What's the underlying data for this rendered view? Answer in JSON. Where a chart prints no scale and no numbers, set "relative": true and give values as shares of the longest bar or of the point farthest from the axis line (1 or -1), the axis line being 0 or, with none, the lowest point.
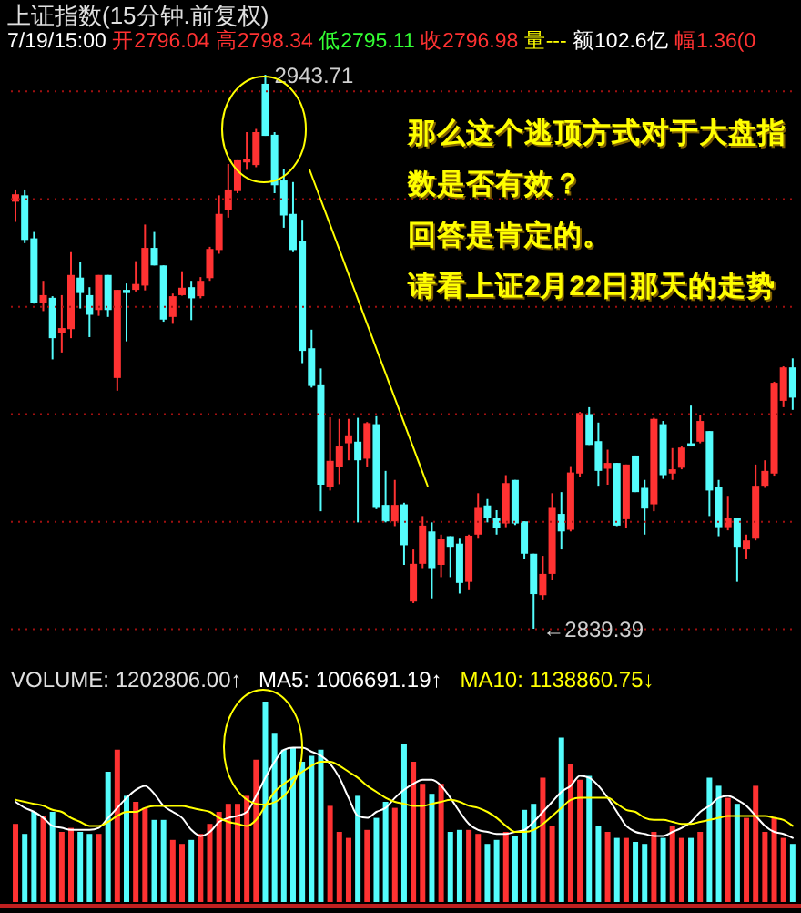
{
  "chart_data": [
    {
      "type": "candlestick",
      "title": "上证指数(15分钟.前复权)",
      "subtitle": "7/19/15:00 开2796.04 高2798.34 低2795.11 收2796.98 量--- 额102.6亿 幅1.36(0",
      "categories": [
        null,
        null,
        null,
        null,
        null,
        null,
        null,
        null,
        null,
        null,
        null,
        null,
        null,
        null,
        null,
        null,
        null,
        null,
        null,
        null,
        null,
        null,
        null,
        null,
        null,
        null,
        null,
        null,
        null,
        null,
        null,
        null,
        null,
        null,
        null,
        null,
        null,
        null,
        null,
        null,
        null,
        null,
        null,
        null,
        null,
        null,
        null,
        null,
        null,
        null,
        null,
        null,
        null,
        null,
        null,
        null,
        null,
        null,
        null,
        null,
        null,
        null,
        null,
        null,
        null,
        null,
        null,
        null,
        null,
        null,
        null,
        null,
        null,
        null,
        null,
        null,
        null,
        null,
        null,
        null,
        null,
        null,
        null,
        null,
        null
      ],
      "ohlc": [
        [
          2919.8,
          2922.1,
          2916.0,
          2921.2
        ],
        [
          2921.0,
          2922.1,
          2912.0,
          2912.6
        ],
        [
          2912.9,
          2914.1,
          2900.6,
          2900.8
        ],
        [
          2900.8,
          2904.9,
          2899.2,
          2902.2
        ],
        [
          2901.7,
          2902.0,
          2890.1,
          2894.1
        ],
        [
          2895.1,
          2902.2,
          2891.4,
          2896.0
        ],
        [
          2895.8,
          2910.3,
          2894.1,
          2906.0
        ],
        [
          2905.5,
          2908.4,
          2899.7,
          2902.6
        ],
        [
          2902.2,
          2903.7,
          2894.3,
          2898.5
        ],
        [
          2899.4,
          2906.0,
          2898.3,
          2906.0
        ],
        [
          2906.0,
          2906.0,
          2898.1,
          2899.4
        ],
        [
          2886.6,
          2903.2,
          2884.2,
          2903.2
        ],
        [
          2903.2,
          2904.4,
          2893.5,
          2902.6
        ],
        [
          2903.2,
          2908.6,
          2902.9,
          2904.3
        ],
        [
          2904.0,
          2915.5,
          2903.1,
          2911.1
        ],
        [
          2911.1,
          2914.1,
          2907.8,
          2907.8
        ],
        [
          2907.8,
          2907.8,
          2897.2,
          2897.6
        ],
        [
          2898.1,
          2902.5,
          2896.8,
          2902.0
        ],
        [
          2902.2,
          2906.7,
          2902.1,
          2903.6
        ],
        [
          2903.7,
          2904.9,
          2897.5,
          2901.6
        ],
        [
          2902.0,
          2905.6,
          2901.6,
          2904.9
        ],
        [
          2905.4,
          2911.3,
          2904.9,
          2910.9
        ],
        [
          2910.7,
          2921.0,
          2910.0,
          2917.5
        ],
        [
          2918.3,
          2926.9,
          2916.8,
          2922.1
        ],
        [
          2921.8,
          2927.6,
          2921.4,
          2927.6
        ],
        [
          2927.2,
          2932.9,
          2925.8,
          2927.8
        ],
        [
          2926.7,
          2933.5,
          2926.3,
          2932.9
        ],
        [
          2942.0,
          2943.71,
          2932.2,
          2932.2
        ],
        [
          2932.4,
          2932.9,
          2921.4,
          2922.9
        ],
        [
          2923.8,
          2926.0,
          2914.9,
          2917.2
        ],
        [
          2917.5,
          2923.5,
          2910.3,
          2910.7
        ],
        [
          2912.4,
          2916.4,
          2889.4,
          2891.7
        ],
        [
          2892.2,
          2895.7,
          2884.8,
          2885.1
        ],
        [
          2885.4,
          2888.4,
          2861.5,
          2866.5
        ],
        [
          2866.0,
          2879.2,
          2865.4,
          2871.0
        ],
        [
          2869.9,
          2878.9,
          2866.6,
          2873.7
        ],
        [
          2874.3,
          2878.9,
          2871.1,
          2875.8
        ],
        [
          2874.6,
          2879.1,
          2859.4,
          2871.1
        ],
        [
          2871.4,
          2878.3,
          2869.9,
          2878.1
        ],
        [
          2877.9,
          2879.4,
          2861.9,
          2862.3
        ],
        [
          2862.7,
          2869.1,
          2859.4,
          2859.6
        ],
        [
          2859.6,
          2867.4,
          2858.7,
          2862.7
        ],
        [
          2862.8,
          2863.1,
          2851.4,
          2855.1
        ],
        [
          2844.5,
          2854.3,
          2844.2,
          2851.6
        ],
        [
          2851.6,
          2860.6,
          2850.8,
          2858.8
        ],
        [
          2857.7,
          2859.4,
          2845.1,
          2850.8
        ],
        [
          2851.4,
          2857.1,
          2849.1,
          2856.2
        ],
        [
          2856.8,
          2856.8,
          2849.1,
          2854.8
        ],
        [
          2855.4,
          2856.5,
          2846.0,
          2848.0
        ],
        [
          2848.2,
          2857.1,
          2846.8,
          2856.9
        ],
        [
          2857.1,
          2864.9,
          2856.5,
          2862.3
        ],
        [
          2862.6,
          2863.8,
          2859.4,
          2860.3
        ],
        [
          2860.3,
          2861.7,
          2857.1,
          2858.3
        ],
        [
          2859.2,
          2868.3,
          2858.5,
          2866.8
        ],
        [
          2867.4,
          2867.4,
          2858.9,
          2859.2
        ],
        [
          2859.6,
          2859.6,
          2852.5,
          2853.5
        ],
        [
          2853.5,
          2853.5,
          2839.39,
          2845.9
        ],
        [
          2845.7,
          2853.1,
          2844.9,
          2849.7
        ],
        [
          2849.7,
          2864.9,
          2848.5,
          2862.3
        ],
        [
          2861.0,
          2865.1,
          2854.3,
          2857.7
        ],
        [
          2858.0,
          2870.0,
          2857.7,
          2868.8
        ],
        [
          2868.6,
          2880.2,
          2868.0,
          2880.0
        ],
        [
          2879.8,
          2881.1,
          2874.0,
          2874.0
        ],
        [
          2874.7,
          2878.2,
          2866.3,
          2869.1
        ],
        [
          2869.5,
          2873.1,
          2866.5,
          2870.6
        ],
        [
          2870.6,
          2870.6,
          2858.7,
          2858.8
        ],
        [
          2860.0,
          2870.3,
          2858.3,
          2870.3
        ],
        [
          2872.0,
          2872.0,
          2865.1,
          2865.1
        ],
        [
          2865.9,
          2867.4,
          2857.1,
          2862.0
        ],
        [
          2862.8,
          2879.1,
          2861.5,
          2878.9
        ],
        [
          2877.9,
          2878.5,
          2867.6,
          2868.3
        ],
        [
          2868.6,
          2873.4,
          2867.4,
          2869.4
        ],
        [
          2869.7,
          2873.7,
          2869.4,
          2873.5
        ],
        [
          2874.3,
          2881.4,
          2873.7,
          2873.7
        ],
        [
          2874.6,
          2879.6,
          2874.3,
          2878.5
        ],
        [
          2876.6,
          2876.6,
          2860.6,
          2865.4
        ],
        [
          2866.0,
          2867.4,
          2856.8,
          2858.5
        ],
        [
          2858.5,
          2864.4,
          2857.9,
          2860.3
        ],
        [
          2860.3,
          2860.3,
          2848.2,
          2854.8
        ],
        [
          2854.3,
          2857.1,
          2852.5,
          2856.0
        ],
        [
          2856.5,
          2870.3,
          2856.0,
          2866.3
        ],
        [
          2866.3,
          2871.1,
          2865.9,
          2869.1
        ],
        [
          2868.6,
          2885.9,
          2868.2,
          2885.7
        ],
        [
          2882.3,
          2888.8,
          2881.1,
          2888.6
        ],
        [
          2888.6,
          2890.3,
          2880.6,
          2882.9
        ]
      ],
      "colors": [
        "#ff3232",
        "#54fcfc",
        "#54fcfc",
        "#ff3232",
        "#54fcfc",
        "#ff3232",
        "#ff3232",
        "#54fcfc",
        "#54fcfc",
        "#ff3232",
        "#54fcfc",
        "#ff3232",
        "#54fcfc",
        "#ff3232",
        "#ff3232",
        "#54fcfc",
        "#54fcfc",
        "#ff3232",
        "#ff3232",
        "#54fcfc",
        "#ff3232",
        "#ff3232",
        "#ff3232",
        "#ff3232",
        "#ff3232",
        "#ff3232",
        "#ff3232",
        "#54fcfc",
        "#54fcfc",
        "#54fcfc",
        "#54fcfc",
        "#54fcfc",
        "#54fcfc",
        "#54fcfc",
        "#ff3232",
        "#ff3232",
        "#ff3232",
        "#54fcfc",
        "#ff3232",
        "#54fcfc",
        "#54fcfc",
        "#ff3232",
        "#54fcfc",
        "#ff3232",
        "#ff3232",
        "#54fcfc",
        "#ff3232",
        "#54fcfc",
        "#54fcfc",
        "#ff3232",
        "#ff3232",
        "#54fcfc",
        "#54fcfc",
        "#ff3232",
        "#54fcfc",
        "#54fcfc",
        "#54fcfc",
        "#ff3232",
        "#ff3232",
        "#54fcfc",
        "#ff3232",
        "#ff3232",
        "#54fcfc",
        "#54fcfc",
        "#ff3232",
        "#54fcfc",
        "#ff3232",
        "#54fcfc",
        "#54fcfc",
        "#ff3232",
        "#54fcfc",
        "#ff3232",
        "#ff3232",
        "#54fcfc",
        "#ff3232",
        "#54fcfc",
        "#54fcfc",
        "#ff3232",
        "#54fcfc",
        "#ff3232",
        "#ff3232",
        "#ff3232",
        "#ff3232",
        "#ff3232",
        "#54fcfc"
      ],
      "yticks": [
        {
          "value": 2839.3,
          "label": null
        },
        {
          "value": 2859.5,
          "label": null
        },
        {
          "value": 2879.8,
          "label": null
        },
        {
          "value": 2900.0,
          "label": null
        },
        {
          "value": 2920.3,
          "label": null
        },
        {
          "value": 2940.6,
          "label": null
        }
      ],
      "grid": "y",
      "tick_labels": false,
      "annotations": [
        "2943.71",
        "←2839.39",
        "那么这个逃顶方式对于大盘指",
        "数是否有效？",
        "回答是肯定的。",
        "请看上证2月22日那天的走势"
      ]
    },
    {
      "type": "bar",
      "relative": true,
      "legend": "top right",
      "tick_labels": false,
      "categories": [
        null,
        null,
        null,
        null,
        null,
        null,
        null,
        null,
        null,
        null,
        null,
        null,
        null,
        null,
        null,
        null,
        null,
        null,
        null,
        null,
        null,
        null,
        null,
        null,
        null,
        null,
        null,
        null,
        null,
        null,
        null,
        null,
        null,
        null,
        null,
        null,
        null,
        null,
        null,
        null,
        null,
        null,
        null,
        null,
        null,
        null,
        null,
        null,
        null,
        null,
        null,
        null,
        null,
        null,
        null,
        null,
        null,
        null,
        null,
        null,
        null,
        null,
        null,
        null,
        null,
        null,
        null,
        null,
        null,
        null,
        null,
        null,
        null,
        null,
        null,
        null,
        null,
        null,
        null,
        null,
        null,
        null,
        null,
        null,
        null
      ],
      "annotations": [
        "VOLUME: 1202806.00↑"
      ],
      "series": [
        {
          "type": "bar",
          "values": [
            0.39,
            0.34,
            0.45,
            0.43,
            0.45,
            0.35,
            0.37,
            0.35,
            0.34,
            0.34,
            0.65,
            0.76,
            0.53,
            0.5,
            0.47,
            0.41,
            0.41,
            0.31,
            0.29,
            0.31,
            0.34,
            0.39,
            0.45,
            0.49,
            0.49,
            0.53,
            0.71,
            1,
            0.84,
            0.76,
            0.77,
            0.7,
            0.73,
            0.76,
            0.48,
            0.35,
            0.32,
            0.53,
            0.36,
            0.42,
            0.5,
            0.47,
            0.79,
            0.7,
            0.59,
            0.54,
            0.59,
            0.35,
            0.36,
            0.36,
            0.34,
            0.29,
            0.31,
            0.35,
            0.33,
            0.46,
            0.49,
            0.62,
            0.38,
            0.82,
            0.69,
            0.61,
            0.63,
            0.38,
            0.35,
            0.32,
            0.32,
            0.3,
            0.29,
            0.35,
            0.32,
            0.38,
            0.32,
            0.32,
            0.35,
            0.62,
            0.58,
            0.52,
            0.49,
            0.42,
            0.58,
            0.35,
            0.42,
            0.32,
            0.29
          ],
          "colors": [
            "#ff3232",
            "#54fcfc",
            "#54fcfc",
            "#ff3232",
            "#54fcfc",
            "#ff3232",
            "#ff3232",
            "#54fcfc",
            "#54fcfc",
            "#ff3232",
            "#54fcfc",
            "#ff3232",
            "#54fcfc",
            "#ff3232",
            "#ff3232",
            "#54fcfc",
            "#54fcfc",
            "#ff3232",
            "#ff3232",
            "#54fcfc",
            "#ff3232",
            "#ff3232",
            "#ff3232",
            "#ff3232",
            "#ff3232",
            "#ff3232",
            "#ff3232",
            "#54fcfc",
            "#54fcfc",
            "#54fcfc",
            "#54fcfc",
            "#54fcfc",
            "#54fcfc",
            "#54fcfc",
            "#ff3232",
            "#ff3232",
            "#ff3232",
            "#54fcfc",
            "#ff3232",
            "#54fcfc",
            "#54fcfc",
            "#ff3232",
            "#54fcfc",
            "#ff3232",
            "#ff3232",
            "#54fcfc",
            "#ff3232",
            "#54fcfc",
            "#54fcfc",
            "#ff3232",
            "#ff3232",
            "#54fcfc",
            "#54fcfc",
            "#ff3232",
            "#54fcfc",
            "#54fcfc",
            "#54fcfc",
            "#ff3232",
            "#ff3232",
            "#54fcfc",
            "#ff3232",
            "#ff3232",
            "#54fcfc",
            "#54fcfc",
            "#ff3232",
            "#54fcfc",
            "#ff3232",
            "#54fcfc",
            "#54fcfc",
            "#ff3232",
            "#54fcfc",
            "#ff3232",
            "#ff3232",
            "#54fcfc",
            "#ff3232",
            "#54fcfc",
            "#54fcfc",
            "#ff3232",
            "#54fcfc",
            "#ff3232",
            "#ff3232",
            "#ff3232",
            "#ff3232",
            "#ff3232",
            "#54fcfc"
          ]
        },
        {
          "type": "line",
          "name": "MA5: 1006691.19↑",
          "color": "#ffffff",
          "values": [
            0.5,
            0.47,
            0.45,
            0.42,
            0.38,
            0.37,
            0.36,
            0.36,
            0.36,
            0.37,
            0.42,
            0.47,
            0.52,
            0.56,
            0.58,
            0.54,
            0.48,
            0.45,
            0.42,
            0.36,
            0.33,
            0.35,
            0.4,
            0.42,
            0.43,
            0.45,
            0.53,
            0.62,
            0.7,
            0.76,
            0.77,
            0.77,
            0.75,
            0.73,
            0.69,
            0.62,
            0.52,
            0.43,
            0.42,
            0.45,
            0.47,
            0.52,
            0.56,
            0.59,
            0.61,
            0.61,
            0.58,
            0.52,
            0.45,
            0.39,
            0.36,
            0.35,
            0.34,
            0.34,
            0.35,
            0.36,
            0.4,
            0.45,
            0.5,
            0.55,
            0.58,
            0.63,
            0.62,
            0.58,
            0.52,
            0.45,
            0.38,
            0.35,
            0.34,
            0.33,
            0.33,
            0.35,
            0.37,
            0.4,
            0.45,
            0.48,
            0.52,
            0.53,
            0.51,
            0.48,
            0.43,
            0.38,
            0.35,
            0.34,
            0.32
          ]
        },
        {
          "type": "line",
          "name": "MA10: 1138860.75↓",
          "color": "#ffff00",
          "values": [
            0.51,
            0.5,
            0.49,
            0.48,
            0.46,
            0.45,
            0.42,
            0.4,
            0.38,
            0.38,
            0.4,
            0.43,
            0.45,
            0.45,
            0.47,
            0.48,
            0.48,
            0.48,
            0.48,
            0.47,
            0.46,
            0.45,
            0.42,
            0.4,
            0.39,
            0.38,
            0.41,
            0.48,
            0.55,
            0.59,
            0.62,
            0.65,
            0.68,
            0.7,
            0.7,
            0.68,
            0.65,
            0.62,
            0.58,
            0.55,
            0.52,
            0.5,
            0.49,
            0.48,
            0.48,
            0.49,
            0.5,
            0.51,
            0.5,
            0.48,
            0.47,
            0.45,
            0.42,
            0.38,
            0.35,
            0.35,
            0.36,
            0.39,
            0.43,
            0.47,
            0.51,
            0.52,
            0.52,
            0.52,
            0.52,
            0.49,
            0.46,
            0.45,
            0.42,
            0.41,
            0.41,
            0.4,
            0.39,
            0.39,
            0.4,
            0.41,
            0.42,
            0.43,
            0.43,
            0.43,
            0.43,
            0.43,
            0.42,
            0.41,
            0.38
          ]
        }
      ]
    }
  ]
}
